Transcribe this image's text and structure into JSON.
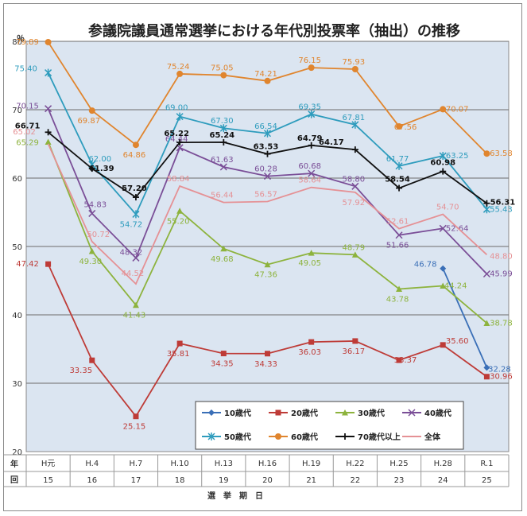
{
  "chart_data": {
    "type": "line",
    "title": "参議院議員通常選挙における年代別投票率（抽出）の推移",
    "ylabel": "％",
    "xlabel": "選　挙　期　日",
    "row_labels": [
      "年",
      "回"
    ],
    "ylim": [
      20,
      80
    ],
    "yticks": [
      20,
      30,
      40,
      50,
      60,
      70,
      80
    ],
    "grid": true,
    "legend_position": "bottom-right",
    "categories": [
      "H元",
      "H.4",
      "H.7",
      "H.10",
      "H.13",
      "H.16",
      "H.19",
      "H.22",
      "H.25",
      "H.28",
      "R.1"
    ],
    "sessions": [
      "15",
      "16",
      "17",
      "18",
      "19",
      "20",
      "21",
      "22",
      "23",
      "24",
      "25"
    ],
    "series": [
      {
        "name": "10歳代",
        "color": "#3a6fb7",
        "marker": "diamond",
        "values": [
          null,
          null,
          null,
          null,
          null,
          null,
          null,
          null,
          null,
          46.78,
          32.28
        ]
      },
      {
        "name": "20歳代",
        "color": "#be3b37",
        "marker": "square",
        "values": [
          47.42,
          33.35,
          25.15,
          35.81,
          34.35,
          34.33,
          36.03,
          36.17,
          33.37,
          35.6,
          30.96
        ]
      },
      {
        "name": "30歳代",
        "color": "#8db33d",
        "marker": "triangle",
        "values": [
          65.29,
          49.3,
          41.43,
          55.2,
          49.68,
          47.36,
          49.05,
          48.79,
          43.78,
          44.24,
          38.78
        ]
      },
      {
        "name": "40歳代",
        "color": "#7a4e97",
        "marker": "x",
        "values": [
          70.15,
          54.83,
          48.32,
          64.44,
          61.63,
          60.28,
          60.68,
          58.8,
          51.66,
          52.64,
          45.99
        ]
      },
      {
        "name": "50歳代",
        "color": "#2e9cbd",
        "marker": "star",
        "values": [
          75.4,
          62.0,
          54.72,
          69.0,
          67.3,
          66.54,
          69.35,
          67.81,
          61.77,
          63.25,
          55.43
        ]
      },
      {
        "name": "60歳代",
        "color": "#e0852e",
        "marker": "circle",
        "values": [
          79.89,
          69.87,
          64.86,
          75.24,
          75.05,
          74.21,
          76.15,
          75.93,
          67.56,
          70.07,
          63.58
        ]
      },
      {
        "name": "70歳代以上",
        "color": "#111111",
        "marker": "plus",
        "values": [
          66.71,
          61.39,
          57.2,
          65.22,
          65.24,
          63.53,
          64.79,
          64.17,
          58.54,
          60.98,
          56.31
        ]
      },
      {
        "name": "全体",
        "color": "#e59195",
        "marker": "none",
        "values": [
          65.02,
          50.72,
          44.52,
          58.84,
          56.44,
          56.57,
          58.64,
          57.92,
          52.61,
          54.7,
          48.8
        ]
      }
    ]
  }
}
